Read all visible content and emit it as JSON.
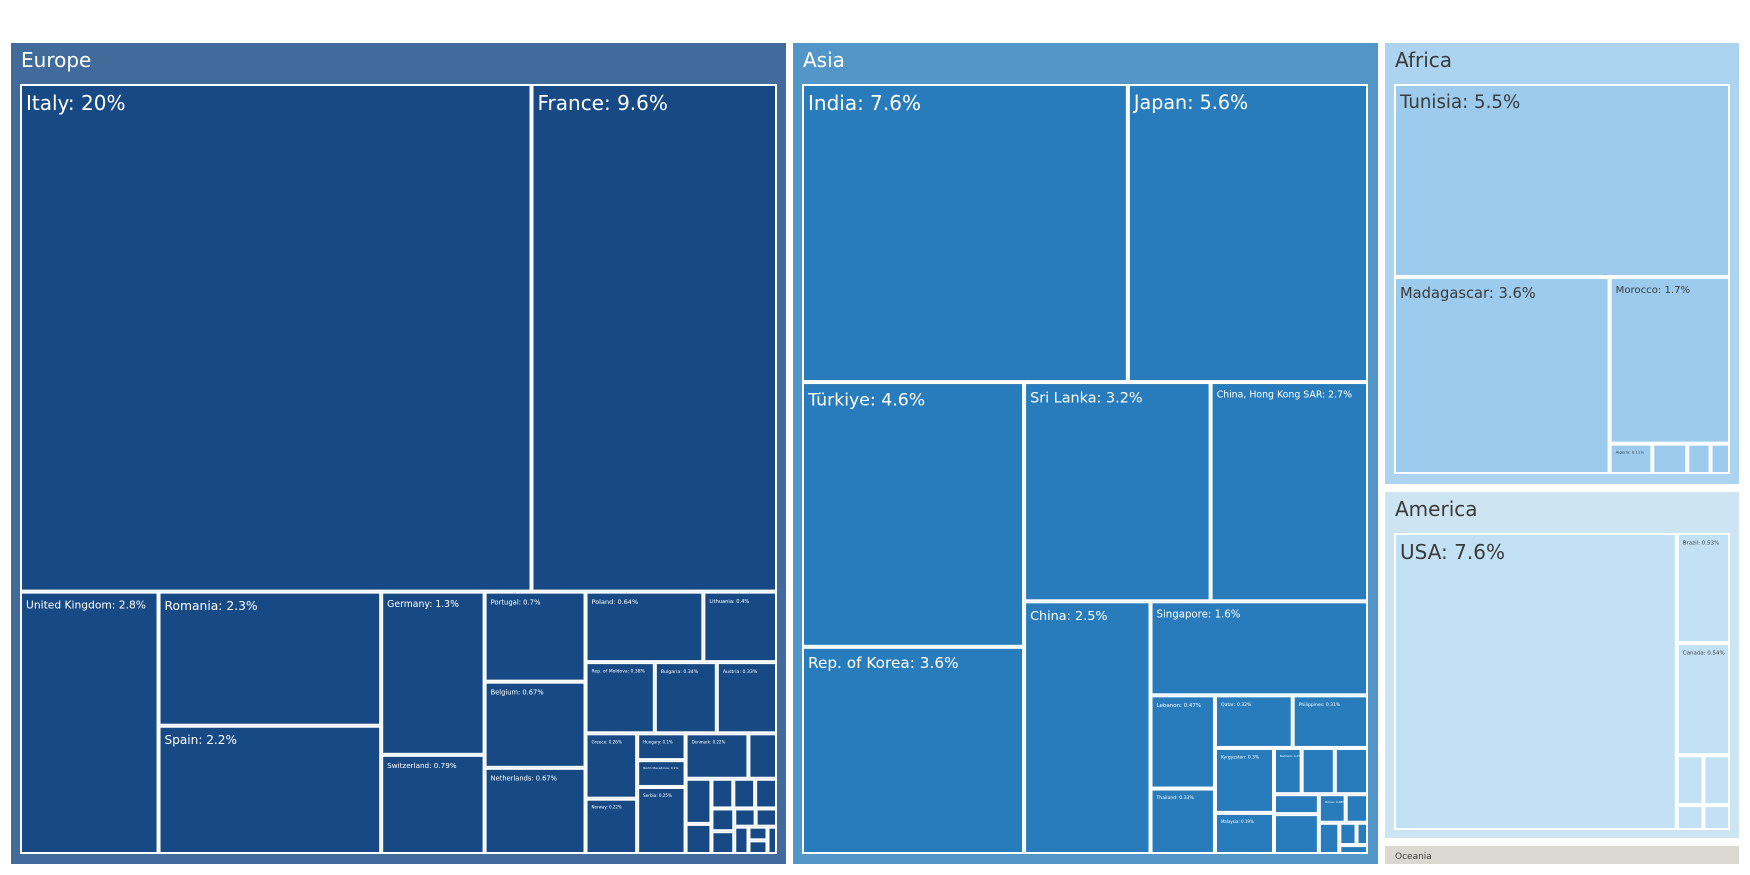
{
  "chart_data": {
    "type": "treemap",
    "title": "",
    "colors": {
      "Europe": {
        "bg": "#416b9b",
        "tile": "#174a85",
        "text": "#ffffff"
      },
      "Asia": {
        "bg": "#5196c7",
        "tile": "#287cbb",
        "text": "#ffffff"
      },
      "Africa": {
        "bg": "#acd4f0",
        "tile": "#9ccbed",
        "text": "#3b3b3b"
      },
      "America": {
        "bg": "#cde4f3",
        "tile": "#c3e1f4",
        "text": "#3b3b3b"
      },
      "Oceania": {
        "bg": "#dad8cf",
        "tile": "#dad8cf",
        "text": "#3b3b3b"
      }
    },
    "regions": [
      {
        "name": "Europe",
        "children": [
          {
            "label": "Italy: 20%",
            "value": 20
          },
          {
            "label": "France: 9.6%",
            "value": 9.6
          },
          {
            "label": "United Kingdom: 2.8%",
            "value": 2.8
          },
          {
            "label": "Romania: 2.3%",
            "value": 2.3
          },
          {
            "label": "Spain: 2.2%",
            "value": 2.2
          },
          {
            "label": "Germany: 1.3%",
            "value": 1.3
          },
          {
            "label": "Switzerland: 0.79%",
            "value": 0.79
          },
          {
            "label": "Portugal: 0.7%",
            "value": 0.7
          },
          {
            "label": "Belgium: 0.67%",
            "value": 0.67
          },
          {
            "label": "Netherlands: 0.67%",
            "value": 0.67
          },
          {
            "label": "Poland: 0.64%",
            "value": 0.64
          },
          {
            "label": "Lithuania: 0.4%",
            "value": 0.4
          },
          {
            "label": "Rep. of Moldova: 0.38%",
            "value": 0.38
          },
          {
            "label": "Bulgaria: 0.34%",
            "value": 0.34
          },
          {
            "label": "Austria: 0.33%",
            "value": 0.33
          },
          {
            "label": "Greece: 0.26%",
            "value": 0.26
          },
          {
            "label": "Norway: 0.22%",
            "value": 0.22
          },
          {
            "label": "Hungary: 0.1%",
            "value": 0.1
          },
          {
            "label": "North Macedonia: 0.1%",
            "value": 0.1
          },
          {
            "label": "Serbia: 0.25%",
            "value": 0.25
          },
          {
            "label": "Denmark: 0.22%",
            "value": 0.22
          },
          {
            "label": "",
            "value": 0.1
          },
          {
            "label": "",
            "value": 0.09
          },
          {
            "label": "",
            "value": 0.06
          },
          {
            "label": "",
            "value": 0.05
          },
          {
            "label": "",
            "value": 0.05
          },
          {
            "label": "",
            "value": 0.05
          },
          {
            "label": "",
            "value": 0.04
          },
          {
            "label": "",
            "value": 0.04
          },
          {
            "label": "",
            "value": 0.03
          },
          {
            "label": "",
            "value": 0.03
          },
          {
            "label": "",
            "value": 0.03
          },
          {
            "label": "",
            "value": 0.02
          },
          {
            "label": "",
            "value": 0.02
          },
          {
            "label": "",
            "value": 0.02
          }
        ]
      },
      {
        "name": "Asia",
        "children": [
          {
            "label": "India: 7.6%",
            "value": 7.6
          },
          {
            "label": "Japan: 5.6%",
            "value": 5.6
          },
          {
            "label": "Türkiye: 4.6%",
            "value": 4.6
          },
          {
            "label": "Rep. of Korea: 3.6%",
            "value": 3.6
          },
          {
            "label": "Sri Lanka: 3.2%",
            "value": 3.2
          },
          {
            "label": "China, Hong Kong SAR: 2.7%",
            "value": 2.7
          },
          {
            "label": "China: 2.5%",
            "value": 2.5
          },
          {
            "label": "Singapore: 1.6%",
            "value": 1.6
          },
          {
            "label": "Lebanon: 0.47%",
            "value": 0.47
          },
          {
            "label": "Thailand: 0.33%",
            "value": 0.33
          },
          {
            "label": "Qatar: 0.32%",
            "value": 0.32
          },
          {
            "label": "Philippines: 0.31%",
            "value": 0.31
          },
          {
            "label": "Kyrgyzstan: 0.3%",
            "value": 0.3
          },
          {
            "label": "Malaysia: 0.19%",
            "value": 0.19
          },
          {
            "label": "Bahrain: 0.1%",
            "value": 0.1
          },
          {
            "label": "",
            "value": 0.12
          },
          {
            "label": "",
            "value": 0.12
          },
          {
            "label": "",
            "value": 0.07
          },
          {
            "label": "",
            "value": 0.14
          },
          {
            "label": "Oman: 0.06%",
            "value": 0.06
          },
          {
            "label": "",
            "value": 0.05
          },
          {
            "label": "",
            "value": 0.05
          },
          {
            "label": "",
            "value": 0.03
          },
          {
            "label": "",
            "value": 0.02
          },
          {
            "label": "",
            "value": 0.02
          }
        ]
      },
      {
        "name": "Africa",
        "children": [
          {
            "label": "Tunisia: 5.5%",
            "value": 5.5
          },
          {
            "label": "Madagascar: 3.6%",
            "value": 3.6
          },
          {
            "label": "Morocco: 1.7%",
            "value": 1.7
          },
          {
            "label": "Algeria: 0.11%",
            "value": 0.11
          },
          {
            "label": "",
            "value": 0.09
          },
          {
            "label": "",
            "value": 0.06
          },
          {
            "label": "",
            "value": 0.05
          }
        ]
      },
      {
        "name": "America",
        "children": [
          {
            "label": "USA: 7.6%",
            "value": 7.6
          },
          {
            "label": "Brazil: 0.53%",
            "value": 0.53
          },
          {
            "label": "Canada: 0.54%",
            "value": 0.54
          },
          {
            "label": "",
            "value": 0.12
          },
          {
            "label": "",
            "value": 0.12
          },
          {
            "label": "",
            "value": 0.06
          },
          {
            "label": "",
            "value": 0.06
          }
        ]
      },
      {
        "name": "Oceania",
        "children": []
      }
    ]
  }
}
